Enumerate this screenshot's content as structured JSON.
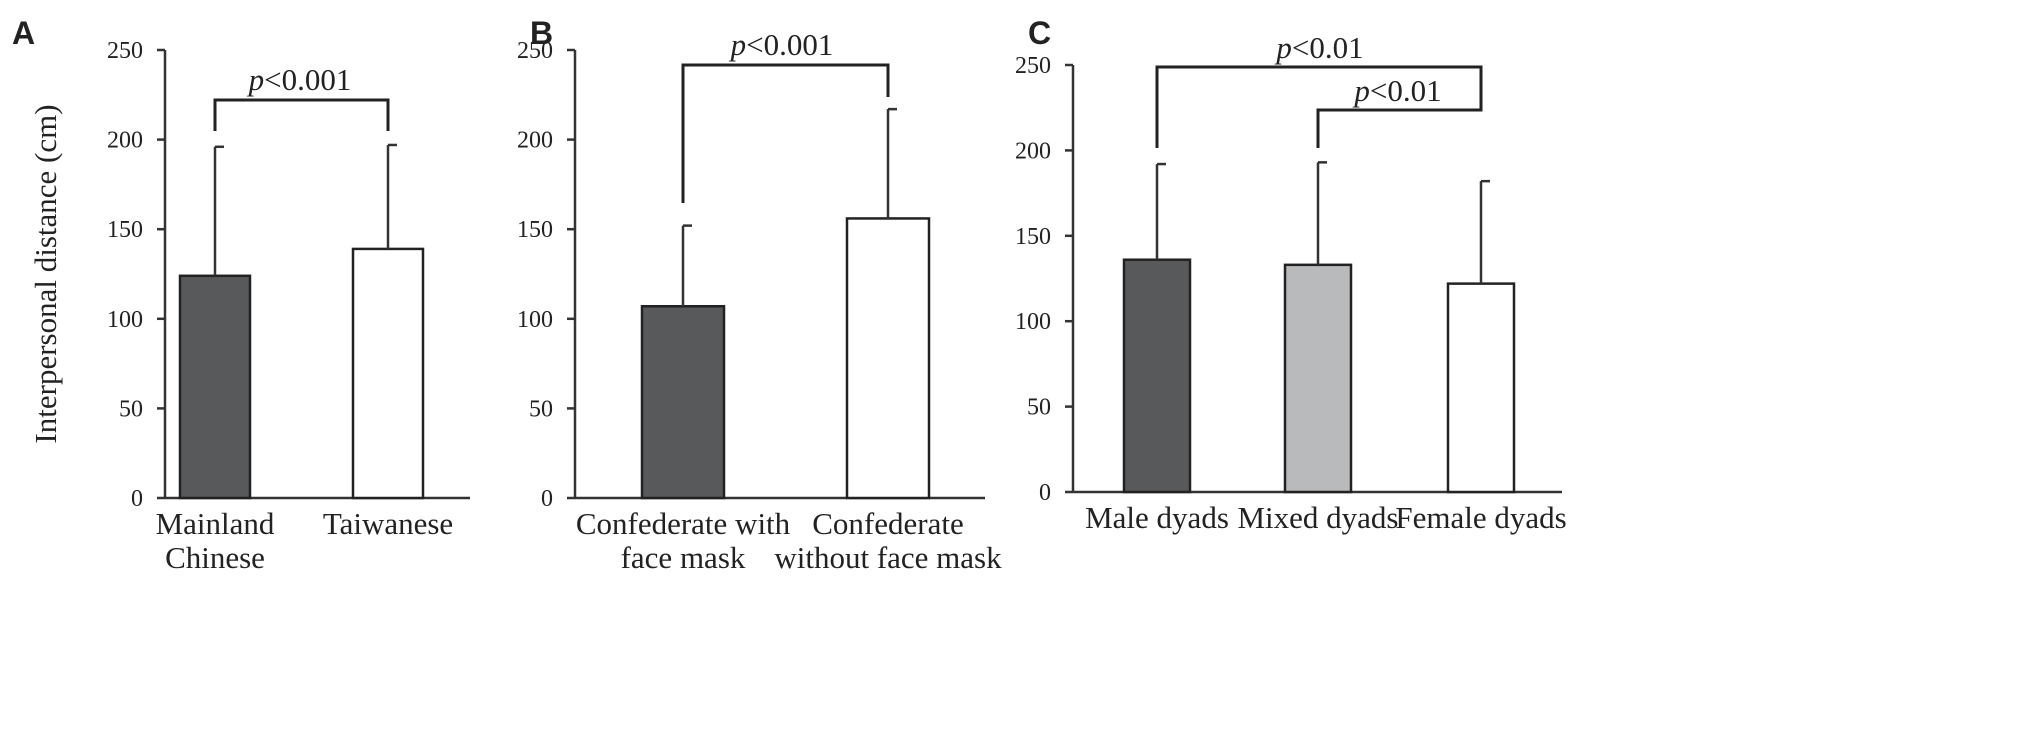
{
  "chart_data": [
    {
      "type": "bar",
      "panel": "A",
      "ylabel": "Interpersonal distance (cm)",
      "ylim": [
        0,
        250
      ],
      "yticks": [
        "0",
        "50",
        "100",
        "150",
        "200",
        "250"
      ],
      "categories": [
        [
          "Mainland",
          "Chinese"
        ],
        [
          "Taiwanese"
        ]
      ],
      "values": [
        124,
        139
      ],
      "error_upper": [
        196,
        197
      ],
      "colors": [
        "#58595b",
        "#ffffff"
      ],
      "significance": [
        {
          "from": 0,
          "to": 1,
          "label_italic": "p",
          "label_rest": "<0.001"
        }
      ]
    },
    {
      "type": "bar",
      "panel": "B",
      "ylabel": "",
      "ylim": [
        0,
        250
      ],
      "yticks": [
        "0",
        "50",
        "100",
        "150",
        "200",
        "250"
      ],
      "categories": [
        [
          "Confederate with",
          "face mask"
        ],
        [
          "Confederate",
          "without face mask"
        ]
      ],
      "values": [
        107,
        156
      ],
      "error_upper": [
        152,
        217
      ],
      "colors": [
        "#58595b",
        "#ffffff"
      ],
      "significance": [
        {
          "from": 0,
          "to": 1,
          "label_italic": "p",
          "label_rest": "<0.001"
        }
      ]
    },
    {
      "type": "bar",
      "panel": "C",
      "ylabel": "",
      "ylim": [
        0,
        250
      ],
      "yticks": [
        "0",
        "50",
        "100",
        "150",
        "200",
        "250"
      ],
      "categories": [
        [
          "Male dyads"
        ],
        [
          "Mixed dyads"
        ],
        [
          "Female dyads"
        ]
      ],
      "values": [
        136,
        133,
        122
      ],
      "error_upper": [
        192,
        193,
        182
      ],
      "colors": [
        "#58595b",
        "#b9babb",
        "#ffffff"
      ],
      "significance": [
        {
          "from": 0,
          "to": 2,
          "label_italic": "p",
          "label_rest": "<0.01"
        },
        {
          "from": 1,
          "to": 2,
          "label_italic": "p",
          "label_rest": "<0.01"
        }
      ]
    }
  ]
}
